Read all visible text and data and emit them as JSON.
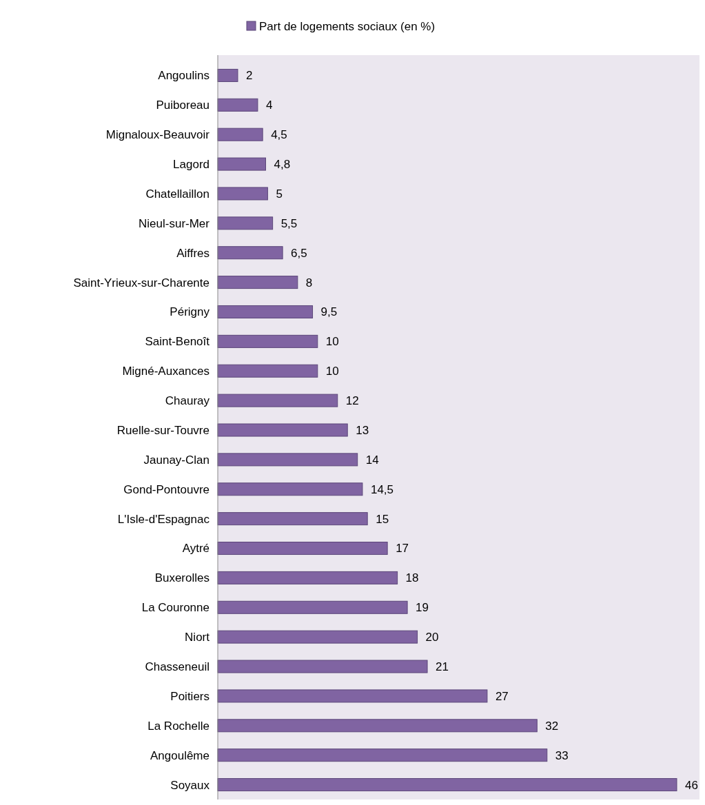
{
  "chart_data": {
    "type": "bar",
    "orientation": "horizontal",
    "legend": "top",
    "categories": [
      "Angoulins",
      "Puiboreau",
      "Mignaloux-Beauvoir",
      "Lagord",
      "Chatellaillon",
      "Nieul-sur-Mer",
      "Aiffres",
      "Saint-Yrieux-sur-Charente",
      "Périgny",
      "Saint-Benoît",
      "Migné-Auxances",
      "Chauray",
      "Ruelle-sur-Touvre",
      "Jaunay-Clan",
      "Gond-Pontouvre",
      "L'Isle-d'Espagnac",
      "Aytré",
      "Buxerolles",
      "La Couronne",
      "Niort",
      "Chasseneuil",
      "Poitiers",
      "La Rochelle",
      "Angoulême",
      "Soyaux"
    ],
    "series": [
      {
        "name": "Part de logements sociaux (en %)",
        "color": "#8064a2",
        "values": [
          2,
          4,
          4.5,
          4.8,
          5,
          5.5,
          6.5,
          8,
          9.5,
          10,
          10,
          12,
          13,
          14,
          14.5,
          15,
          17,
          18,
          19,
          20,
          21,
          27,
          32,
          33,
          46
        ],
        "value_labels": [
          "2",
          "4",
          "4,5",
          "4,8",
          "5",
          "5,5",
          "6,5",
          "8",
          "9,5",
          "10",
          "10",
          "12",
          "13",
          "14",
          "14,5",
          "15",
          "17",
          "18",
          "19",
          "20",
          "21",
          "27",
          "32",
          "33",
          "46"
        ]
      }
    ]
  }
}
